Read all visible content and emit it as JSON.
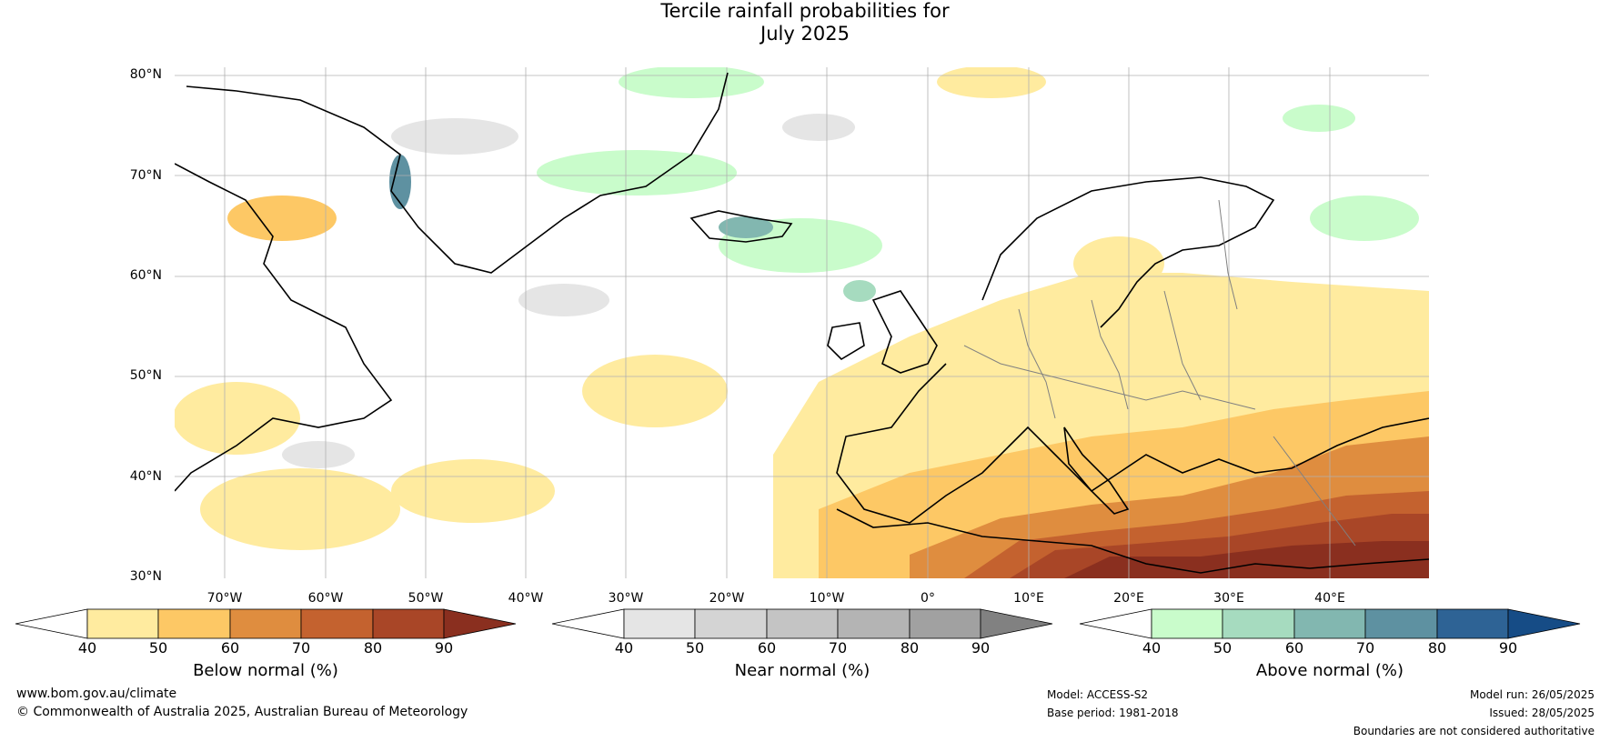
{
  "title": {
    "line1": "Tercile rainfall probabilities for",
    "line2": "July 2025"
  },
  "map": {
    "lat_labels": [
      "80°N",
      "70°N",
      "60°N",
      "50°N",
      "40°N",
      "30°N"
    ],
    "lon_labels": [
      "70°W",
      "60°W",
      "50°W",
      "40°W",
      "30°W",
      "20°W",
      "10°W",
      "0°",
      "10°E",
      "20°E",
      "30°E",
      "40°E"
    ],
    "grid": true,
    "colors": {
      "below": [
        "#ffffff",
        "#ffeb9f",
        "#fdc865",
        "#df8d3f",
        "#c4622f",
        "#a94627",
        "#8a2f1f"
      ],
      "near": [
        "#ffffff",
        "#e5e5e5",
        "#d4d4d4",
        "#c4c4c4",
        "#b4b4b4",
        "#a1a1a1",
        "#818181"
      ],
      "above": [
        "#ffffff",
        "#c9fccb",
        "#a6dbbf",
        "#82b7b0",
        "#5e91a1",
        "#2e6395",
        "#164c86"
      ],
      "land_outline": "#000000",
      "border": "#808080"
    }
  },
  "colorbars": [
    {
      "label": "Below normal (%)",
      "ticks": [
        "40",
        "50",
        "60",
        "70",
        "80",
        "90"
      ]
    },
    {
      "label": "Near normal (%)",
      "ticks": [
        "40",
        "50",
        "60",
        "70",
        "80",
        "90"
      ]
    },
    {
      "label": "Above normal (%)",
      "ticks": [
        "40",
        "50",
        "60",
        "70",
        "80",
        "90"
      ]
    }
  ],
  "footer": {
    "website": "www.bom.gov.au/climate",
    "copyright": "© Commonwealth of Australia 2025, Australian Bureau of Meteorology",
    "model": "Model: ACCESS-S2",
    "base_period": "Base period: 1981-2018",
    "model_run": "Model run: 26/05/2025",
    "issued": "Issued: 28/05/2025",
    "disclaimer": "Boundaries are not considered authoritative"
  }
}
